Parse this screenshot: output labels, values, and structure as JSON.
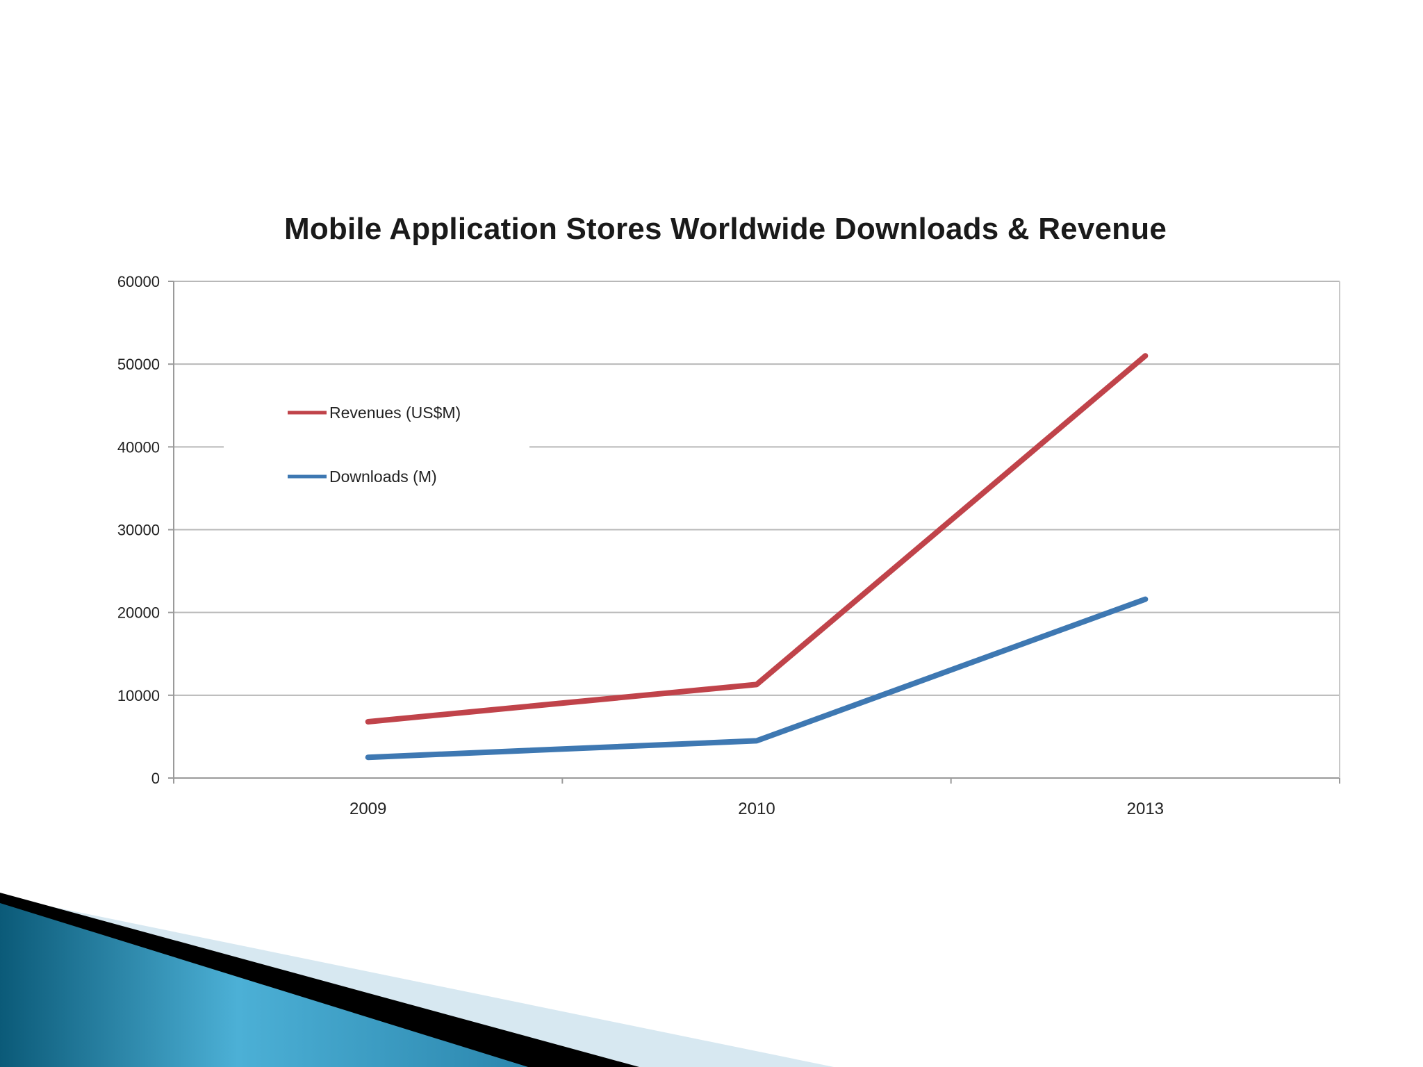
{
  "chart_data": {
    "type": "line",
    "title": "Mobile Application Stores Worldwide Downloads & Revenue",
    "xlabel": "",
    "ylabel": "",
    "categories": [
      "2009",
      "2010",
      "2013"
    ],
    "ylim": [
      0,
      60000
    ],
    "yticks": [
      "0",
      "10000",
      "20000",
      "30000",
      "40000",
      "50000",
      "60000"
    ],
    "grid": true,
    "legend_position": "top-left",
    "series": [
      {
        "name": "Revenues (US$M)",
        "values": [
          6800,
          11300,
          51000
        ],
        "color": "#c0434a"
      },
      {
        "name": "Downloads (M)",
        "values": [
          2500,
          4500,
          21600
        ],
        "color": "#3e78b2"
      }
    ]
  },
  "decor": {
    "accent_colors": [
      "#0b5f7e",
      "#5fb8d8",
      "#000000",
      "#d6e8f0"
    ]
  }
}
